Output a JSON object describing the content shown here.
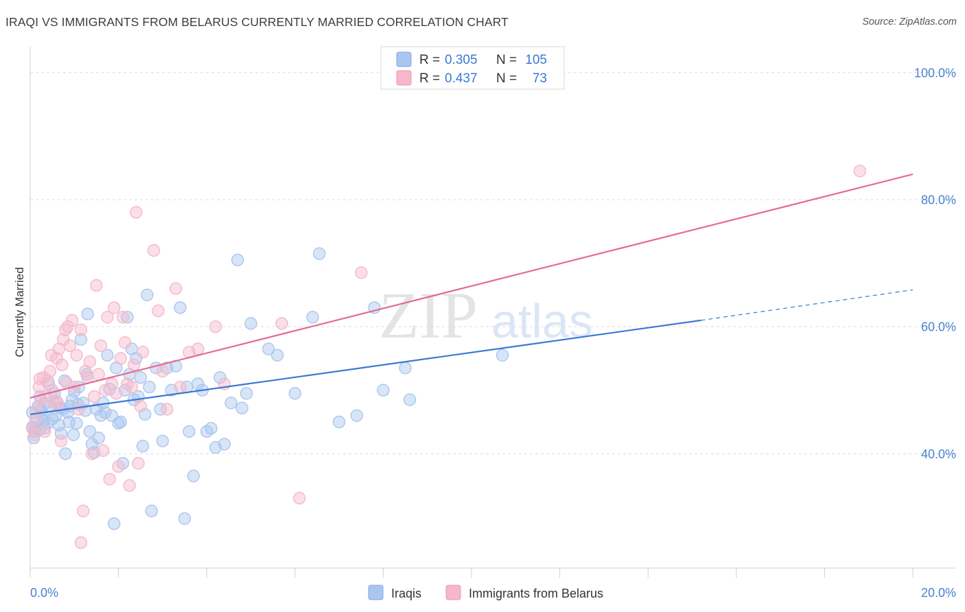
{
  "header": {
    "title": "IRAQI VS IMMIGRANTS FROM BELARUS CURRENTLY MARRIED CORRELATION CHART",
    "source": "Source: ZipAtlas.com"
  },
  "watermark": {
    "zip": "ZIP",
    "atlas": "atlas"
  },
  "legend": {
    "r_label": "R =",
    "n_label": "N =",
    "rows": [
      {
        "r": "0.305",
        "n": "105",
        "color": "#a9c6ee"
      },
      {
        "r": "0.437",
        "n": "73",
        "color": "#f5b8cb"
      }
    ]
  },
  "bottom_legend": {
    "items": [
      {
        "label": "Iraqis",
        "color": "#a9c6ee"
      },
      {
        "label": "Immigrants from Belarus",
        "color": "#f5b8cb"
      }
    ]
  },
  "chart_data": {
    "type": "scatter",
    "title": "IRAQI VS IMMIGRANTS FROM BELARUS CURRENTLY MARRIED CORRELATION CHART",
    "ylabel": "Currently Married",
    "xlabel": "",
    "xlim": [
      0,
      20
    ],
    "ylim": [
      22,
      103
    ],
    "x_tick_labels": [
      "0.0%",
      "20.0%"
    ],
    "y_ticks": [
      40,
      60,
      80,
      100
    ],
    "y_tick_labels": [
      "40.0%",
      "60.0%",
      "80.0%",
      "100.0%"
    ],
    "grid": true,
    "legend_position": "top-center",
    "series": [
      {
        "name": "Iraqis",
        "color": "#3a78d4",
        "fill": "#a9c6ee",
        "trend": {
          "x0": 0,
          "y0": 46.2,
          "x1": 15.2,
          "y1": 61.0,
          "dashed_to_x": 20,
          "dashed_to_y": 65.8
        },
        "points": [
          [
            0.05,
            44.2
          ],
          [
            0.1,
            43.5
          ],
          [
            0.15,
            45.5
          ],
          [
            0.2,
            43.8
          ],
          [
            0.25,
            46.8
          ],
          [
            0.3,
            45.2
          ],
          [
            0.35,
            48.0
          ],
          [
            0.4,
            44.8
          ],
          [
            0.45,
            47.5
          ],
          [
            0.5,
            45.5
          ],
          [
            0.55,
            49.5
          ],
          [
            0.6,
            48.2
          ],
          [
            0.65,
            44.5
          ],
          [
            0.7,
            43.2
          ],
          [
            0.75,
            47.0
          ],
          [
            0.8,
            40.0
          ],
          [
            0.85,
            46.5
          ],
          [
            0.9,
            47.5
          ],
          [
            0.95,
            48.5
          ],
          [
            1.0,
            49.8
          ],
          [
            1.05,
            44.8
          ],
          [
            1.1,
            50.5
          ],
          [
            1.15,
            58.0
          ],
          [
            1.2,
            48.0
          ],
          [
            1.25,
            46.8
          ],
          [
            1.3,
            62.0
          ],
          [
            1.35,
            43.5
          ],
          [
            1.4,
            41.5
          ],
          [
            1.45,
            40.2
          ],
          [
            1.5,
            47.0
          ],
          [
            1.55,
            42.5
          ],
          [
            1.6,
            46.0
          ],
          [
            1.65,
            48.0
          ],
          [
            1.7,
            46.5
          ],
          [
            1.75,
            55.5
          ],
          [
            1.8,
            50.2
          ],
          [
            1.85,
            46.0
          ],
          [
            1.9,
            29.0
          ],
          [
            1.95,
            53.5
          ],
          [
            2.0,
            44.8
          ],
          [
            2.05,
            45.0
          ],
          [
            2.1,
            38.5
          ],
          [
            2.15,
            50.0
          ],
          [
            2.2,
            61.5
          ],
          [
            2.25,
            52.5
          ],
          [
            2.3,
            56.5
          ],
          [
            2.35,
            48.5
          ],
          [
            2.4,
            55.0
          ],
          [
            2.45,
            49.0
          ],
          [
            2.5,
            52.0
          ],
          [
            2.55,
            41.2
          ],
          [
            2.6,
            46.2
          ],
          [
            2.65,
            65.0
          ],
          [
            2.7,
            50.5
          ],
          [
            2.75,
            31.0
          ],
          [
            2.85,
            53.5
          ],
          [
            2.95,
            47.0
          ],
          [
            3.0,
            42.0
          ],
          [
            3.1,
            53.5
          ],
          [
            3.2,
            50.0
          ],
          [
            3.3,
            53.8
          ],
          [
            3.4,
            63.0
          ],
          [
            3.5,
            29.8
          ],
          [
            3.55,
            50.5
          ],
          [
            3.6,
            43.5
          ],
          [
            3.7,
            36.5
          ],
          [
            3.8,
            51.0
          ],
          [
            3.9,
            50.0
          ],
          [
            4.0,
            43.5
          ],
          [
            4.1,
            44.0
          ],
          [
            4.2,
            41.0
          ],
          [
            4.3,
            52.0
          ],
          [
            4.4,
            41.5
          ],
          [
            4.55,
            48.0
          ],
          [
            4.7,
            70.5
          ],
          [
            4.8,
            47.2
          ],
          [
            4.9,
            49.5
          ],
          [
            5.0,
            60.5
          ],
          [
            5.4,
            56.5
          ],
          [
            5.6,
            55.5
          ],
          [
            6.0,
            49.5
          ],
          [
            6.4,
            61.5
          ],
          [
            6.55,
            71.5
          ],
          [
            7.0,
            45.0
          ],
          [
            7.4,
            46.0
          ],
          [
            7.8,
            63.0
          ],
          [
            8.0,
            50.0
          ],
          [
            8.5,
            53.5
          ],
          [
            8.6,
            48.5
          ],
          [
            10.7,
            55.5
          ],
          [
            0.05,
            46.5
          ],
          [
            0.08,
            42.5
          ],
          [
            0.12,
            44.0
          ],
          [
            0.18,
            47.5
          ],
          [
            0.22,
            49.0
          ],
          [
            0.28,
            46.0
          ],
          [
            0.32,
            44.0
          ],
          [
            0.42,
            51.0
          ],
          [
            0.58,
            46.0
          ],
          [
            0.68,
            47.2
          ],
          [
            0.78,
            51.5
          ],
          [
            0.88,
            45.0
          ],
          [
            0.98,
            43.0
          ],
          [
            1.08,
            47.8
          ],
          [
            1.28,
            52.5
          ]
        ]
      },
      {
        "name": "Immigrants from Belarus",
        "color": "#e56b93",
        "fill": "#f5b8cb",
        "trend": {
          "x0": 0,
          "y0": 48.8,
          "x1": 20,
          "y1": 84.0
        },
        "points": [
          [
            0.05,
            44.0
          ],
          [
            0.1,
            43.0
          ],
          [
            0.15,
            47.0
          ],
          [
            0.2,
            50.5
          ],
          [
            0.25,
            48.5
          ],
          [
            0.3,
            52.0
          ],
          [
            0.35,
            49.0
          ],
          [
            0.4,
            51.5
          ],
          [
            0.45,
            53.0
          ],
          [
            0.5,
            50.0
          ],
          [
            0.55,
            48.0
          ],
          [
            0.6,
            55.0
          ],
          [
            0.65,
            56.5
          ],
          [
            0.7,
            42.0
          ],
          [
            0.75,
            58.0
          ],
          [
            0.8,
            59.5
          ],
          [
            0.85,
            60.0
          ],
          [
            0.9,
            57.0
          ],
          [
            0.95,
            61.0
          ],
          [
            1.0,
            50.5
          ],
          [
            1.05,
            55.5
          ],
          [
            1.1,
            47.0
          ],
          [
            1.15,
            59.5
          ],
          [
            1.2,
            31.0
          ],
          [
            1.25,
            53.0
          ],
          [
            1.3,
            52.0
          ],
          [
            1.35,
            54.5
          ],
          [
            1.4,
            40.0
          ],
          [
            1.45,
            49.0
          ],
          [
            1.5,
            66.5
          ],
          [
            1.55,
            52.5
          ],
          [
            1.6,
            57.0
          ],
          [
            1.65,
            40.5
          ],
          [
            1.7,
            50.0
          ],
          [
            1.75,
            61.5
          ],
          [
            1.8,
            36.0
          ],
          [
            1.85,
            51.0
          ],
          [
            1.9,
            63.0
          ],
          [
            1.95,
            49.5
          ],
          [
            2.0,
            38.0
          ],
          [
            2.05,
            55.0
          ],
          [
            2.1,
            61.5
          ],
          [
            2.15,
            57.5
          ],
          [
            2.2,
            51.0
          ],
          [
            2.25,
            35.0
          ],
          [
            2.3,
            50.5
          ],
          [
            2.35,
            54.0
          ],
          [
            2.4,
            78.0
          ],
          [
            2.45,
            38.5
          ],
          [
            2.5,
            47.5
          ],
          [
            2.55,
            56.0
          ],
          [
            2.8,
            72.0
          ],
          [
            2.9,
            62.5
          ],
          [
            3.0,
            53.0
          ],
          [
            3.1,
            47.0
          ],
          [
            3.3,
            66.0
          ],
          [
            3.4,
            50.5
          ],
          [
            3.6,
            56.0
          ],
          [
            3.8,
            56.5
          ],
          [
            4.2,
            60.0
          ],
          [
            4.4,
            51.0
          ],
          [
            5.7,
            60.5
          ],
          [
            6.1,
            33.0
          ],
          [
            7.5,
            68.5
          ],
          [
            18.8,
            84.5
          ],
          [
            1.15,
            26.0
          ],
          [
            0.12,
            45.5
          ],
          [
            0.22,
            51.8
          ],
          [
            0.33,
            43.5
          ],
          [
            0.48,
            55.5
          ],
          [
            0.62,
            48.0
          ],
          [
            0.72,
            54.0
          ],
          [
            0.82,
            51.2
          ]
        ]
      }
    ]
  }
}
